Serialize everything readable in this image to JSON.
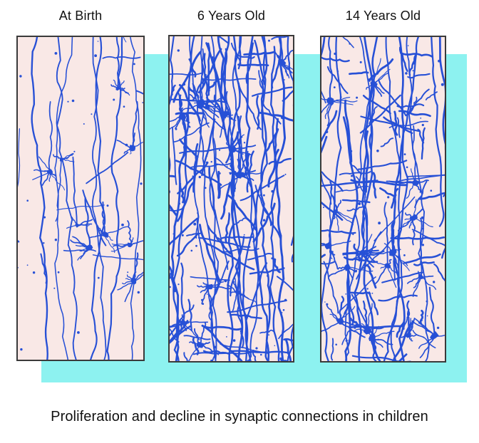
{
  "figure": {
    "caption": "Proliferation and decline in synaptic connections in children"
  },
  "colors": {
    "background": "#ffffff",
    "highlight_band": "#8df2f0",
    "panel_bg": "#f9e8e6",
    "panel_border": "#3a3a3a",
    "neuron": "#2750d6",
    "text": "#111111"
  },
  "panels": [
    {
      "id": "at-birth",
      "label": "At Birth",
      "density": {
        "fibers": 8,
        "branches": 12,
        "cells": 9,
        "dots": 30,
        "cell_r_min": 2.5,
        "cell_r_max": 4.5,
        "stroke_boost": 0,
        "seed": 7
      }
    },
    {
      "id": "6-years-old",
      "label": "6 Years Old",
      "density": {
        "fibers": 16,
        "branches": 120,
        "cells": 12,
        "dots": 70,
        "cell_r_min": 3.0,
        "cell_r_max": 5.5,
        "stroke_boost": 0.6,
        "seed": 42
      }
    },
    {
      "id": "14-years-old",
      "label": "14 Years Old",
      "density": {
        "fibers": 12,
        "branches": 88,
        "cells": 16,
        "dots": 60,
        "cell_r_min": 3.5,
        "cell_r_max": 6.5,
        "stroke_boost": 0.5,
        "seed": 99
      }
    }
  ]
}
